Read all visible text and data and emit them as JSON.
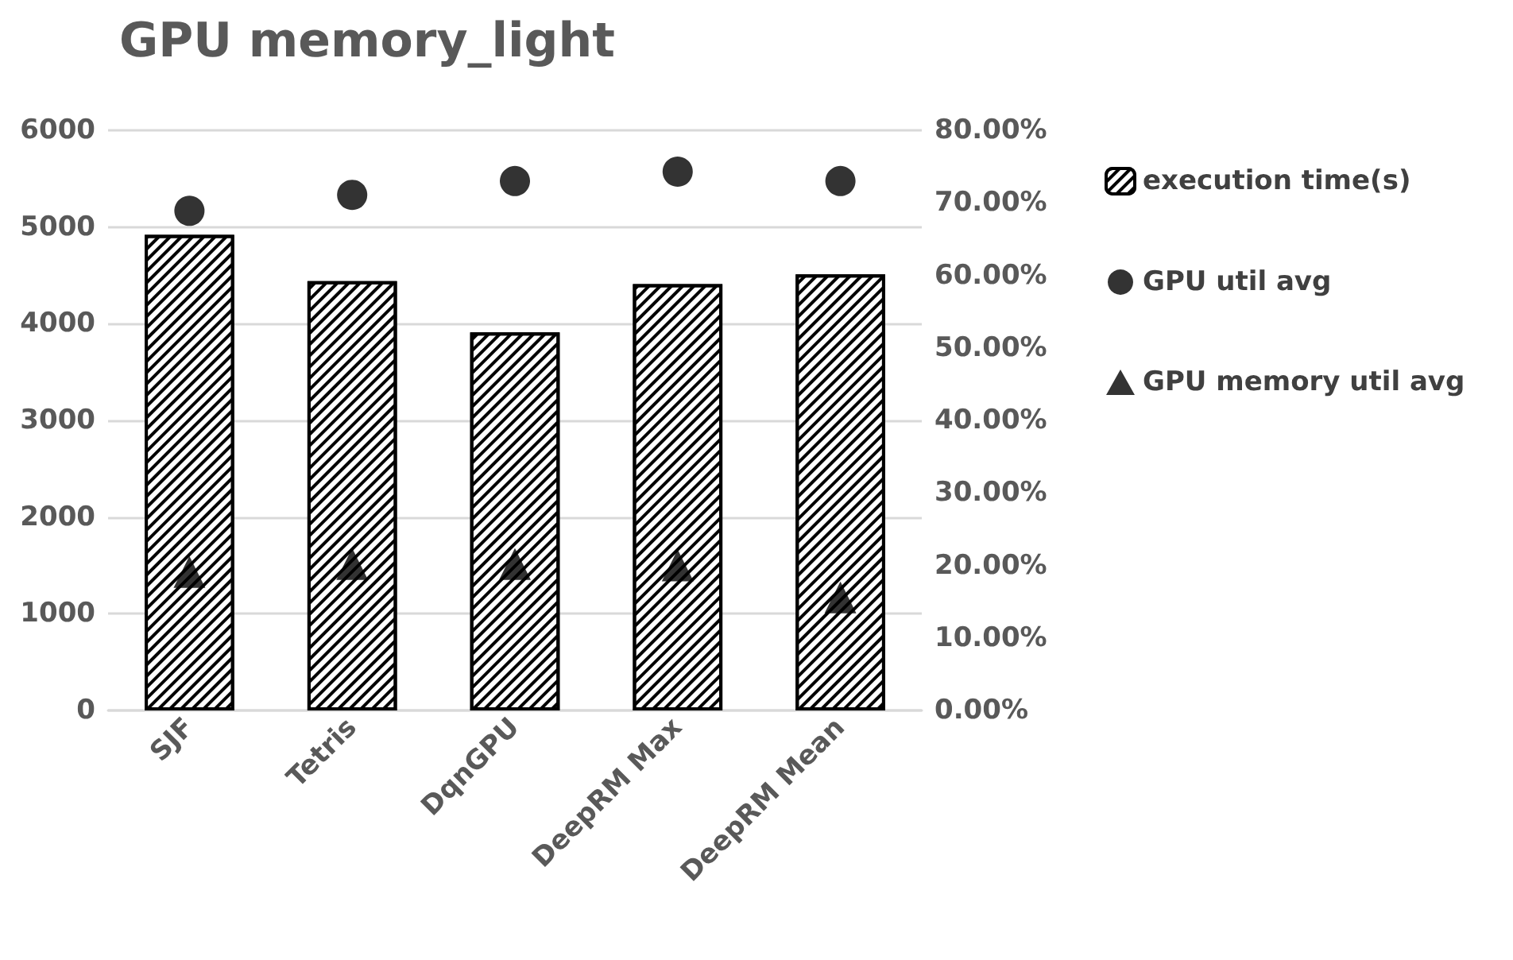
{
  "chart_data": {
    "type": "bar",
    "title": "GPU memory_light",
    "categories": [
      "SJF",
      "Tetris",
      "DqnGPU",
      "DeepRM Max",
      "DeepRM Mean"
    ],
    "series": [
      {
        "name": "execution time(s)",
        "color": "#000000",
        "values": [
          4920,
          4440,
          3910,
          4410,
          4510
        ]
      },
      {
        "name": "GPU util avg",
        "type": "scatter",
        "marker": "circle",
        "axis": "y2",
        "color": "#000000",
        "values": [
          68.9,
          71.1,
          73.0,
          74.3,
          73.0
        ]
      },
      {
        "name": "GPU memory util avg",
        "type": "scatter",
        "marker": "triangle",
        "axis": "y2",
        "color": "#000000",
        "values": [
          19.1,
          20.2,
          20.2,
          20.0,
          15.6
        ]
      }
    ],
    "ylim": [
      0,
      6000
    ],
    "yticks": [
      0,
      1000,
      2000,
      3000,
      4000,
      5000,
      6000
    ],
    "y2lim": [
      0,
      80
    ],
    "y2ticks": [
      {
        "value": 0,
        "label": "0.00%"
      },
      {
        "value": 10,
        "label": "10.00%"
      },
      {
        "value": 20,
        "label": "20.00%"
      },
      {
        "value": 30,
        "label": "30.00%"
      },
      {
        "value": 40,
        "label": "40.00%"
      },
      {
        "value": 50,
        "label": "50.00%"
      },
      {
        "value": 60,
        "label": "60.00%"
      },
      {
        "value": 70,
        "label": "70.00%"
      },
      {
        "value": 80,
        "label": "80.00%"
      }
    ],
    "grid": "y",
    "legend": "right"
  }
}
